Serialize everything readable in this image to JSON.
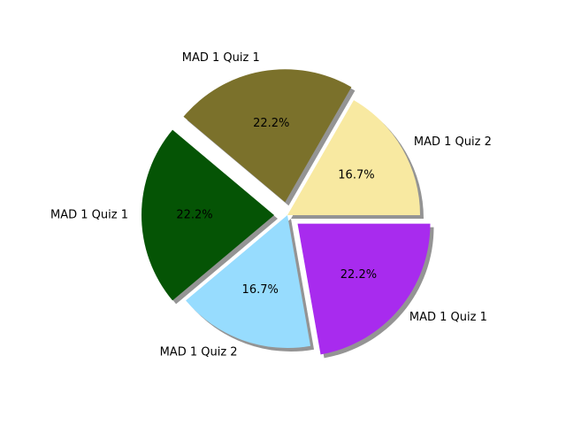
{
  "chart_data": {
    "type": "pie",
    "title": "",
    "start_angle_deg": 0,
    "direction": "counterclockwise",
    "shadow": true,
    "slices": [
      {
        "label": "MAD 1 Quiz 2",
        "value": 3,
        "pct_label": "16.7%",
        "color": "#f8e9a1",
        "explode": 0
      },
      {
        "label": "MAD 1 Quiz 1",
        "value": 4,
        "pct_label": "22.2%",
        "color": "#7b712b",
        "explode": 0.1
      },
      {
        "label": "MAD 1 Quiz 1",
        "value": 4,
        "pct_label": "22.2%",
        "color": "#055405",
        "explode": 0.1
      },
      {
        "label": "MAD 1 Quiz 2",
        "value": 3,
        "pct_label": "16.7%",
        "color": "#97dcfe",
        "explode": 0
      },
      {
        "label": "MAD 1 Quiz 1",
        "value": 4,
        "pct_label": "22.2%",
        "color": "#a82bee",
        "explode": 0.1
      }
    ]
  }
}
